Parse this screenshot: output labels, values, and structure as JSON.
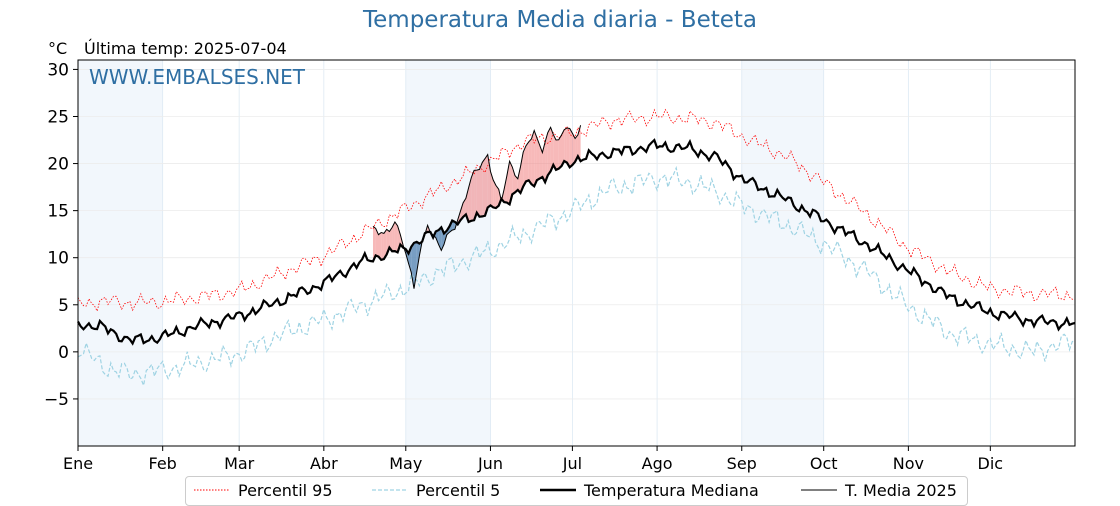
{
  "chart_data": {
    "type": "line",
    "title": "Temperatura Media diaria - Beteta",
    "unit": "°C",
    "last_temp_label": "Última temp: 2025-07-04",
    "watermark": "WWW.EMBALSES.NET",
    "x_ticks": [
      {
        "day": 1,
        "label": "Ene"
      },
      {
        "day": 32,
        "label": "Feb"
      },
      {
        "day": 60,
        "label": "Mar"
      },
      {
        "day": 91,
        "label": "Abr"
      },
      {
        "day": 121,
        "label": "May"
      },
      {
        "day": 152,
        "label": "Jun"
      },
      {
        "day": 182,
        "label": "Jul"
      },
      {
        "day": 213,
        "label": "Ago"
      },
      {
        "day": 244,
        "label": "Sep"
      },
      {
        "day": 274,
        "label": "Oct"
      },
      {
        "day": 305,
        "label": "Nov"
      },
      {
        "day": 335,
        "label": "Dic"
      }
    ],
    "xlim": [
      1,
      366
    ],
    "yticks": [
      -5,
      0,
      5,
      10,
      15,
      20,
      25,
      30
    ],
    "ytick_labels": [
      "−5",
      "0",
      "5",
      "10",
      "15",
      "20",
      "25",
      "30"
    ],
    "ylim": [
      -10,
      31
    ],
    "grid": true,
    "legend_position": "bottom-center",
    "shaded_months": [
      "Ene",
      "May",
      "Sep"
    ],
    "series": [
      {
        "name": "Percentil 95",
        "color": "#ff0000",
        "style": "dotted",
        "x": [
          1,
          10,
          20,
          31,
          45,
          60,
          75,
          91,
          105,
          121,
          135,
          152,
          165,
          182,
          195,
          213,
          225,
          235,
          244,
          260,
          274,
          290,
          305,
          320,
          335,
          350,
          366
        ],
        "y": [
          5.0,
          5.4,
          5.2,
          5.3,
          5.8,
          6.5,
          8.3,
          10.2,
          12.6,
          15.2,
          17.5,
          20.2,
          22.4,
          23.2,
          24.5,
          25.0,
          24.8,
          24.3,
          22.9,
          20.8,
          18.0,
          14.6,
          11.0,
          8.5,
          6.7,
          6.2,
          6.0
        ]
      },
      {
        "name": "Percentil 5",
        "color": "#9fd3e3",
        "style": "dashed",
        "x": [
          1,
          10,
          20,
          31,
          45,
          60,
          75,
          91,
          105,
          121,
          135,
          152,
          165,
          182,
          195,
          213,
          225,
          235,
          244,
          260,
          274,
          290,
          305,
          320,
          335,
          350,
          366
        ],
        "y": [
          0.5,
          -1.5,
          -2.4,
          -2.0,
          -1.2,
          -0.2,
          1.8,
          3.4,
          5.0,
          6.8,
          8.8,
          10.8,
          12.6,
          15.0,
          17.2,
          18.5,
          18.0,
          17.0,
          15.5,
          13.6,
          11.5,
          8.5,
          4.8,
          2.0,
          0.8,
          0.0,
          1.2
        ]
      },
      {
        "name": "Temperatura Mediana",
        "color": "#000000",
        "style": "solid-thick",
        "x": [
          1,
          10,
          20,
          31,
          45,
          60,
          75,
          91,
          105,
          121,
          135,
          152,
          165,
          182,
          195,
          213,
          225,
          235,
          244,
          260,
          274,
          290,
          305,
          320,
          335,
          350,
          366
        ],
        "y": [
          3.0,
          2.6,
          1.2,
          1.5,
          2.8,
          3.8,
          5.4,
          7.3,
          9.6,
          11.0,
          13.2,
          15.0,
          17.6,
          20.3,
          21.1,
          21.9,
          21.6,
          20.6,
          18.4,
          16.2,
          14.0,
          11.4,
          8.6,
          5.8,
          4.2,
          3.3,
          3.0
        ]
      },
      {
        "name": "T. Media 2025",
        "color": "#000000",
        "style": "solid-thin",
        "x": [
          109,
          113,
          117,
          120,
          122,
          124,
          126,
          129,
          131,
          134,
          137,
          140,
          143,
          146,
          148,
          151,
          153,
          156,
          159,
          162,
          165,
          168,
          171,
          174,
          177,
          180,
          183,
          185
        ],
        "y": [
          13.0,
          12.6,
          13.8,
          11.5,
          9.2,
          7.0,
          10.5,
          13.6,
          12.1,
          10.9,
          12.8,
          13.9,
          16.5,
          19.0,
          19.8,
          20.9,
          18.3,
          16.0,
          20.0,
          18.7,
          22.0,
          23.0,
          21.5,
          24.0,
          22.2,
          24.0,
          22.5,
          24.4
        ]
      }
    ],
    "legend": [
      "Percentil 95",
      "Percentil 5",
      "Temperatura Mediana",
      "T. Media 2025"
    ]
  }
}
